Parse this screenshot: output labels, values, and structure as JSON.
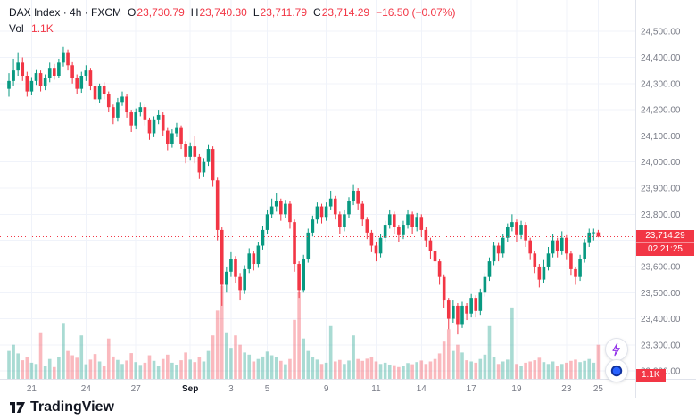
{
  "legend": {
    "title": "DAX Index · 4h · FXCM",
    "o_label": "O",
    "o_value": "23,730.79",
    "h_label": "H",
    "h_value": "23,740.30",
    "l_label": "L",
    "l_value": "23,711.79",
    "c_label": "C",
    "c_value": "23,714.29",
    "change": "−16.50 (−0.07%)",
    "vol_label": "Vol",
    "vol_value": "1.1K"
  },
  "price_label": {
    "price": "23,714.29",
    "countdown": "02:21:25"
  },
  "volume_badge": "1.1K",
  "footer": {
    "brand": "TradingView"
  },
  "colors": {
    "up": "#089981",
    "down": "#f23645",
    "grid": "#f0f3fa",
    "axis_text": "#787b86",
    "text": "#131722",
    "accent_blue": "#2962ff",
    "lightning_purple": "#9334e9",
    "axis_border": "#e0e3eb"
  },
  "chart_data": {
    "type": "candlestick",
    "title": "DAX Index · 4h · FXCM",
    "symbol": "DAX Index",
    "interval": "4h",
    "exchange": "FXCM",
    "last": {
      "open": 23730.79,
      "high": 23740.3,
      "low": 23711.79,
      "close": 23714.29,
      "change": -16.5,
      "change_pct": -0.07,
      "volume_k": 1.1
    },
    "y_axis": {
      "range": [
        23170,
        24620
      ],
      "ticks": [
        {
          "v": 24500,
          "label": "24,500.00"
        },
        {
          "v": 24400,
          "label": "24,400.00"
        },
        {
          "v": 24300,
          "label": "24,300.00"
        },
        {
          "v": 24200,
          "label": "24,200.00"
        },
        {
          "v": 24100,
          "label": "24,100.00"
        },
        {
          "v": 24000,
          "label": "24,000.00"
        },
        {
          "v": 23900,
          "label": "23,900.00"
        },
        {
          "v": 23800,
          "label": "23,800.00"
        },
        {
          "v": 23700,
          "label": "23,700.00"
        },
        {
          "v": 23600,
          "label": "23,600.00"
        },
        {
          "v": 23500,
          "label": "23,500.00"
        },
        {
          "v": 23400,
          "label": "23,400.00"
        },
        {
          "v": 23300,
          "label": "23,300.00"
        },
        {
          "v": 23200,
          "label": "23,200.00"
        }
      ]
    },
    "volume_axis": {
      "max": 3100,
      "last_label": "1.1K"
    },
    "x_ticks": [
      {
        "i": 5,
        "label": "21"
      },
      {
        "i": 17,
        "label": "24"
      },
      {
        "i": 28,
        "label": "27"
      },
      {
        "i": 40,
        "label": "Sep",
        "major": true
      },
      {
        "i": 49,
        "label": "3"
      },
      {
        "i": 57,
        "label": "5"
      },
      {
        "i": 70,
        "label": "9"
      },
      {
        "i": 81,
        "label": "11"
      },
      {
        "i": 91,
        "label": "14"
      },
      {
        "i": 102,
        "label": "17"
      },
      {
        "i": 112,
        "label": "19"
      },
      {
        "i": 123,
        "label": "23"
      },
      {
        "i": 130,
        "label": "25"
      }
    ],
    "candles": [
      [
        24280,
        24340,
        24250,
        24310,
        900
      ],
      [
        24310,
        24395,
        24290,
        24350,
        1100
      ],
      [
        24350,
        24420,
        24330,
        24380,
        820
      ],
      [
        24380,
        24400,
        24310,
        24330,
        600
      ],
      [
        24330,
        24345,
        24250,
        24270,
        700
      ],
      [
        24270,
        24325,
        24255,
        24310,
        520
      ],
      [
        24310,
        24355,
        24295,
        24340,
        480
      ],
      [
        24340,
        24350,
        24270,
        24290,
        1500
      ],
      [
        24290,
        24335,
        24275,
        24320,
        430
      ],
      [
        24320,
        24380,
        24305,
        24360,
        640
      ],
      [
        24360,
        24375,
        24315,
        24330,
        380
      ],
      [
        24330,
        24395,
        24320,
        24380,
        700
      ],
      [
        24380,
        24440,
        24365,
        24420,
        1800
      ],
      [
        24420,
        24430,
        24350,
        24370,
        900
      ],
      [
        24370,
        24385,
        24300,
        24320,
        760
      ],
      [
        24320,
        24335,
        24260,
        24280,
        680
      ],
      [
        24280,
        24345,
        24265,
        24330,
        1400
      ],
      [
        24330,
        24370,
        24310,
        24350,
        470
      ],
      [
        24350,
        24360,
        24275,
        24290,
        620
      ],
      [
        24290,
        24300,
        24215,
        24240,
        800
      ],
      [
        24240,
        24300,
        24225,
        24290,
        560
      ],
      [
        24290,
        24305,
        24240,
        24260,
        430
      ],
      [
        24260,
        24270,
        24190,
        24210,
        1300
      ],
      [
        24210,
        24220,
        24145,
        24170,
        720
      ],
      [
        24170,
        24245,
        24155,
        24230,
        610
      ],
      [
        24230,
        24270,
        24215,
        24250,
        480
      ],
      [
        24250,
        24260,
        24170,
        24190,
        590
      ],
      [
        24190,
        24200,
        24115,
        24140,
        830
      ],
      [
        24140,
        24205,
        24125,
        24190,
        540
      ],
      [
        24190,
        24230,
        24175,
        24210,
        450
      ],
      [
        24210,
        24220,
        24140,
        24160,
        520
      ],
      [
        24160,
        24170,
        24085,
        24110,
        760
      ],
      [
        24110,
        24175,
        24095,
        24160,
        580
      ],
      [
        24160,
        24200,
        24145,
        24180,
        430
      ],
      [
        24180,
        24190,
        24100,
        24120,
        640
      ],
      [
        24120,
        24130,
        24045,
        24070,
        780
      ],
      [
        24070,
        24125,
        24055,
        24110,
        520
      ],
      [
        24110,
        24150,
        24095,
        24130,
        460
      ],
      [
        24130,
        24140,
        24050,
        24070,
        600
      ],
      [
        24070,
        24080,
        23995,
        24020,
        850
      ],
      [
        24020,
        24075,
        24005,
        24060,
        620
      ],
      [
        24060,
        24100,
        23995,
        24020,
        540
      ],
      [
        24020,
        24030,
        23935,
        23960,
        700
      ],
      [
        23960,
        24015,
        23945,
        24000,
        560
      ],
      [
        24000,
        24065,
        23985,
        24050,
        900
      ],
      [
        24050,
        24060,
        23905,
        23930,
        1400
      ],
      [
        23930,
        23940,
        23700,
        23740,
        2200
      ],
      [
        23740,
        23750,
        23450,
        23530,
        3000
      ],
      [
        23530,
        23600,
        23500,
        23580,
        1500
      ],
      [
        23580,
        23655,
        23560,
        23630,
        1000
      ],
      [
        23630,
        23640,
        23535,
        23560,
        1400
      ],
      [
        23560,
        23575,
        23470,
        23510,
        1100
      ],
      [
        23510,
        23605,
        23495,
        23590,
        850
      ],
      [
        23590,
        23670,
        23575,
        23650,
        780
      ],
      [
        23650,
        23660,
        23585,
        23610,
        560
      ],
      [
        23610,
        23695,
        23595,
        23680,
        640
      ],
      [
        23680,
        23755,
        23665,
        23740,
        720
      ],
      [
        23740,
        23815,
        23725,
        23800,
        880
      ],
      [
        23800,
        23860,
        23785,
        23830,
        760
      ],
      [
        23830,
        23880,
        23810,
        23850,
        690
      ],
      [
        23850,
        23860,
        23775,
        23800,
        580
      ],
      [
        23800,
        23855,
        23785,
        23840,
        470
      ],
      [
        23840,
        23850,
        23745,
        23770,
        640
      ],
      [
        23770,
        23780,
        23580,
        23610,
        1900
      ],
      [
        23610,
        23620,
        23480,
        23510,
        2800
      ],
      [
        23510,
        23645,
        23500,
        23630,
        1300
      ],
      [
        23630,
        23745,
        23615,
        23730,
        900
      ],
      [
        23730,
        23795,
        23715,
        23780,
        700
      ],
      [
        23780,
        23845,
        23765,
        23830,
        620
      ],
      [
        23830,
        23840,
        23765,
        23790,
        480
      ],
      [
        23790,
        23845,
        23775,
        23830,
        520
      ],
      [
        23830,
        23890,
        23815,
        23860,
        1700
      ],
      [
        23860,
        23870,
        23780,
        23800,
        560
      ],
      [
        23800,
        23810,
        23725,
        23750,
        610
      ],
      [
        23750,
        23815,
        23735,
        23800,
        480
      ],
      [
        23800,
        23865,
        23785,
        23850,
        590
      ],
      [
        23850,
        23915,
        23835,
        23890,
        1400
      ],
      [
        23890,
        23900,
        23815,
        23840,
        640
      ],
      [
        23840,
        23850,
        23755,
        23780,
        580
      ],
      [
        23780,
        23790,
        23705,
        23730,
        650
      ],
      [
        23730,
        23740,
        23655,
        23680,
        700
      ],
      [
        23680,
        23695,
        23620,
        23650,
        560
      ],
      [
        23650,
        23725,
        23635,
        23710,
        480
      ],
      [
        23710,
        23775,
        23695,
        23760,
        520
      ],
      [
        23760,
        23815,
        23745,
        23800,
        460
      ],
      [
        23800,
        23810,
        23725,
        23750,
        440
      ],
      [
        23750,
        23760,
        23695,
        23720,
        380
      ],
      [
        23720,
        23775,
        23705,
        23760,
        420
      ],
      [
        23760,
        23815,
        23745,
        23800,
        510
      ],
      [
        23800,
        23810,
        23725,
        23750,
        470
      ],
      [
        23750,
        23805,
        23735,
        23790,
        540
      ],
      [
        23790,
        23800,
        23715,
        23740,
        590
      ],
      [
        23740,
        23750,
        23675,
        23700,
        480
      ],
      [
        23700,
        23710,
        23630,
        23660,
        560
      ],
      [
        23660,
        23670,
        23590,
        23620,
        640
      ],
      [
        23620,
        23630,
        23530,
        23560,
        820
      ],
      [
        23560,
        23570,
        23440,
        23470,
        1200
      ],
      [
        23470,
        23480,
        23360,
        23400,
        1600
      ],
      [
        23400,
        23470,
        23385,
        23450,
        900
      ],
      [
        23450,
        23460,
        23340,
        23380,
        1100
      ],
      [
        23380,
        23465,
        23365,
        23450,
        850
      ],
      [
        23450,
        23460,
        23395,
        23420,
        600
      ],
      [
        23420,
        23495,
        23405,
        23480,
        560
      ],
      [
        23480,
        23490,
        23405,
        23430,
        520
      ],
      [
        23430,
        23515,
        23415,
        23500,
        640
      ],
      [
        23500,
        23575,
        23485,
        23560,
        780
      ],
      [
        23560,
        23635,
        23545,
        23620,
        1700
      ],
      [
        23620,
        23695,
        23605,
        23680,
        700
      ],
      [
        23680,
        23690,
        23620,
        23650,
        480
      ],
      [
        23650,
        23725,
        23635,
        23710,
        560
      ],
      [
        23710,
        23765,
        23695,
        23750,
        620
      ],
      [
        23750,
        23800,
        23735,
        23770,
        2300
      ],
      [
        23770,
        23780,
        23695,
        23720,
        480
      ],
      [
        23720,
        23775,
        23705,
        23760,
        420
      ],
      [
        23760,
        23770,
        23675,
        23700,
        520
      ],
      [
        23700,
        23710,
        23625,
        23650,
        560
      ],
      [
        23650,
        23660,
        23575,
        23600,
        600
      ],
      [
        23600,
        23610,
        23520,
        23550,
        680
      ],
      [
        23550,
        23625,
        23535,
        23600,
        540
      ],
      [
        23600,
        23675,
        23585,
        23650,
        480
      ],
      [
        23650,
        23725,
        23635,
        23700,
        560
      ],
      [
        23700,
        23710,
        23635,
        23660,
        420
      ],
      [
        23660,
        23735,
        23645,
        23710,
        480
      ],
      [
        23710,
        23720,
        23625,
        23650,
        520
      ],
      [
        23650,
        23660,
        23565,
        23590,
        580
      ],
      [
        23590,
        23600,
        23530,
        23560,
        620
      ],
      [
        23560,
        23645,
        23545,
        23630,
        540
      ],
      [
        23630,
        23705,
        23615,
        23690,
        580
      ],
      [
        23690,
        23745,
        23675,
        23730,
        640
      ],
      [
        23730,
        23745,
        23700,
        23731,
        520
      ],
      [
        23730.79,
        23740.3,
        23711.79,
        23714.29,
        1100
      ]
    ]
  }
}
